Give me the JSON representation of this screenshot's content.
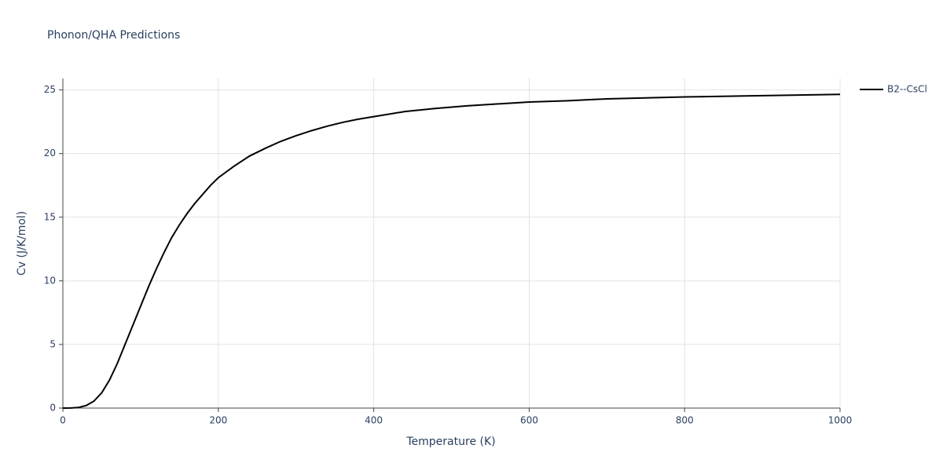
{
  "chart_data": {
    "type": "line",
    "title": "Phonon/QHA Predictions",
    "x_label": "Temperature (K)",
    "y_label": "Cv (J/K/mol)",
    "x": [
      0,
      10,
      20,
      30,
      40,
      50,
      60,
      70,
      80,
      90,
      100,
      110,
      120,
      130,
      140,
      150,
      160,
      170,
      180,
      190,
      200,
      220,
      240,
      260,
      280,
      300,
      320,
      340,
      360,
      380,
      400,
      440,
      480,
      520,
      560,
      600,
      650,
      700,
      800,
      900,
      1000
    ],
    "series": [
      {
        "name": "B2--CsCl",
        "color": "#000000",
        "values": [
          0,
          0.01,
          0.05,
          0.2,
          0.55,
          1.2,
          2.2,
          3.5,
          5.0,
          6.5,
          8.0,
          9.5,
          10.9,
          12.2,
          13.4,
          14.4,
          15.3,
          16.1,
          16.8,
          17.5,
          18.1,
          19.0,
          19.8,
          20.4,
          20.95,
          21.4,
          21.8,
          22.15,
          22.45,
          22.7,
          22.9,
          23.3,
          23.55,
          23.75,
          23.9,
          24.05,
          24.15,
          24.3,
          24.45,
          24.55,
          24.65
        ]
      }
    ],
    "xlim": [
      0,
      1000
    ],
    "xticks": [
      0,
      200,
      400,
      600,
      800,
      1000
    ],
    "ylim": [
      0,
      25.9
    ],
    "yticks": [
      0,
      5,
      10,
      15,
      20,
      25
    ],
    "grid": true,
    "legend_position": "right"
  }
}
